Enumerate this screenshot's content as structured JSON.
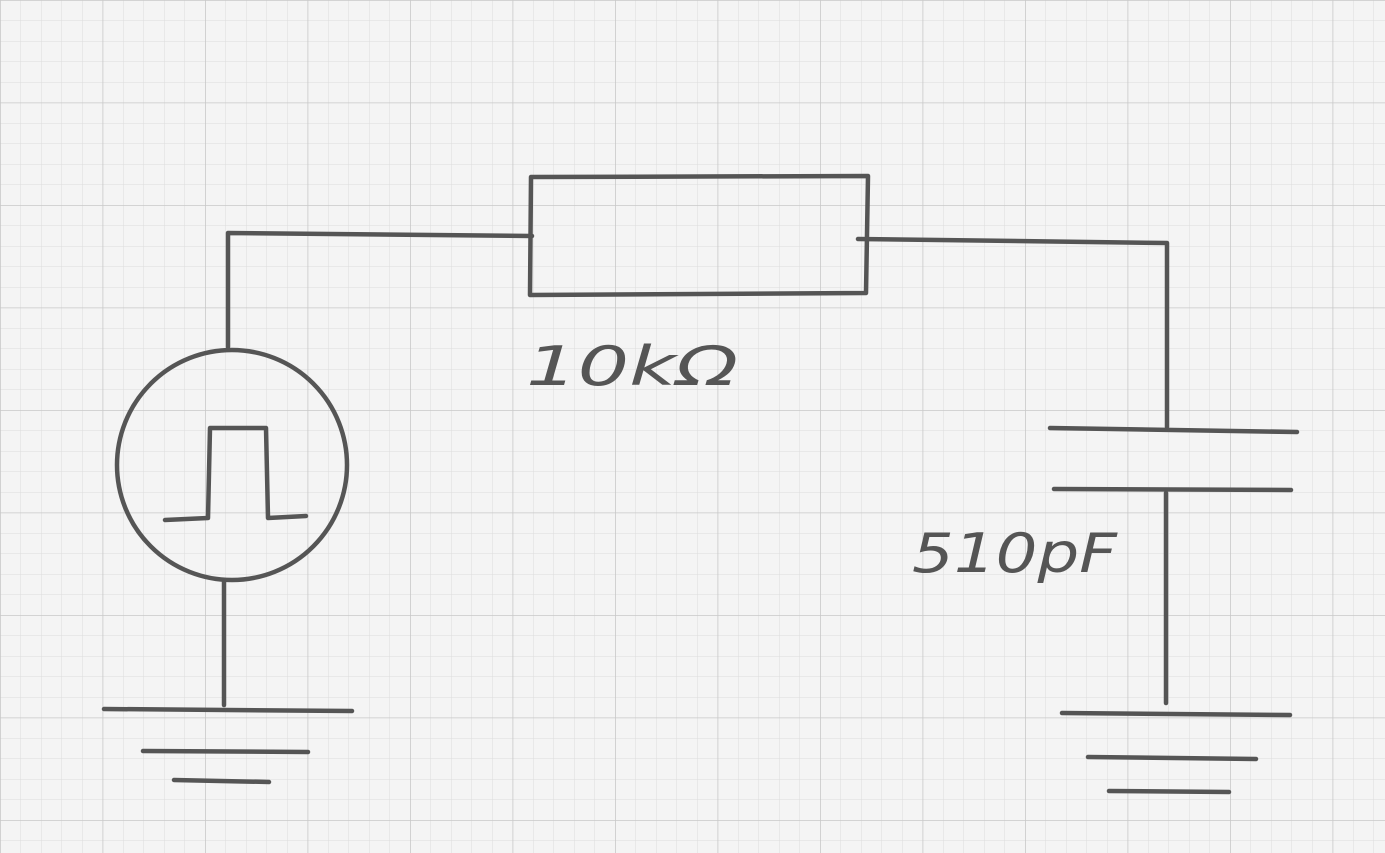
{
  "diagram": {
    "resistor": {
      "value_label": "10kΩ"
    },
    "capacitor": {
      "value_label": "510pF"
    }
  },
  "colors": {
    "paper": "#f4f4f4",
    "grid_minor": "#dcdcdc",
    "grid_major": "#c8c8c8",
    "ink": "#555555"
  }
}
